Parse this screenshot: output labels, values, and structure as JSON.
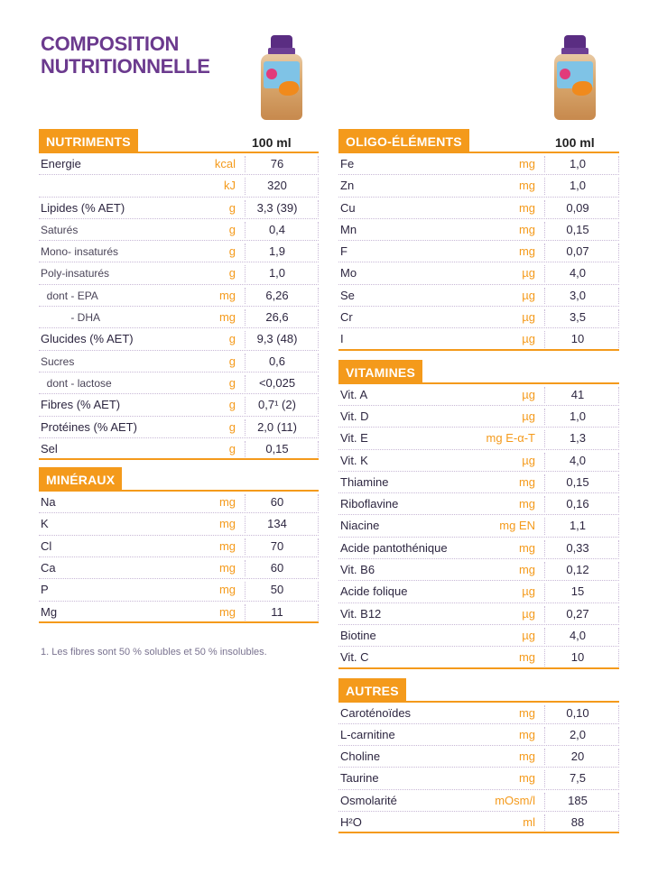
{
  "title_line1": "COMPOSITION",
  "title_line2": "NUTRITIONNELLE",
  "col_head": "100 ml",
  "left": {
    "nutriments": {
      "label": "NUTRIMENTS",
      "rows": [
        {
          "name": "Energie",
          "unit": "kcal",
          "val": "76",
          "style": "bold"
        },
        {
          "name": "",
          "unit": "kJ",
          "val": "320",
          "style": "bold"
        },
        {
          "name": "Lipides (% AET)",
          "unit": "g",
          "val": "3,3 (39)",
          "style": "bold"
        },
        {
          "name": "Saturés",
          "unit": "g",
          "val": "0,4",
          "style": "light"
        },
        {
          "name": "Mono- insaturés",
          "unit": "g",
          "val": "1,9",
          "style": "light"
        },
        {
          "name": "Poly-insaturés",
          "unit": "g",
          "val": "1,0",
          "style": "light"
        },
        {
          "name": "  dont - EPA",
          "unit": "mg",
          "val": "6,26",
          "style": "light"
        },
        {
          "name": "          - DHA",
          "unit": "mg",
          "val": "26,6",
          "style": "light"
        },
        {
          "name": "Glucides (% AET)",
          "unit": "g",
          "val": "9,3 (48)",
          "style": "bold"
        },
        {
          "name": "Sucres",
          "unit": "g",
          "val": "0,6",
          "style": "light"
        },
        {
          "name": "  dont - lactose",
          "unit": "g",
          "val": "<0,025",
          "style": "light"
        },
        {
          "name": "Fibres (% AET)",
          "unit": "g",
          "val": "0,7¹ (2)",
          "style": "bold"
        },
        {
          "name": "Protéines (% AET)",
          "unit": "g",
          "val": "2,0 (11)",
          "style": "bold"
        },
        {
          "name": "Sel",
          "unit": "g",
          "val": "0,15",
          "style": "bold"
        }
      ]
    },
    "mineraux": {
      "label": "MINÉRAUX",
      "rows": [
        {
          "name": "Na",
          "unit": "mg",
          "val": "60",
          "style": "bold"
        },
        {
          "name": "K",
          "unit": "mg",
          "val": "134",
          "style": "bold"
        },
        {
          "name": "Cl",
          "unit": "mg",
          "val": "70",
          "style": "bold"
        },
        {
          "name": "Ca",
          "unit": "mg",
          "val": "60",
          "style": "bold"
        },
        {
          "name": "P",
          "unit": "mg",
          "val": "50",
          "style": "bold"
        },
        {
          "name": "Mg",
          "unit": "mg",
          "val": "11",
          "style": "bold"
        }
      ]
    },
    "footnote": "1.   Les fibres sont 50 % solubles et 50 % insolubles."
  },
  "right": {
    "oligo": {
      "label": "OLIGO-ÉLÉMENTS",
      "rows": [
        {
          "name": "Fe",
          "unit": "mg",
          "val": "1,0"
        },
        {
          "name": "Zn",
          "unit": "mg",
          "val": "1,0"
        },
        {
          "name": "Cu",
          "unit": "mg",
          "val": "0,09"
        },
        {
          "name": "Mn",
          "unit": "mg",
          "val": "0,15"
        },
        {
          "name": "F",
          "unit": "mg",
          "val": "0,07"
        },
        {
          "name": "Mo",
          "unit": "µg",
          "val": "4,0"
        },
        {
          "name": "Se",
          "unit": "µg",
          "val": "3,0"
        },
        {
          "name": "Cr",
          "unit": "µg",
          "val": "3,5"
        },
        {
          "name": "I",
          "unit": "µg",
          "val": "10"
        }
      ]
    },
    "vitamines": {
      "label": "VITAMINES",
      "rows": [
        {
          "name": "Vit. A",
          "unit": "µg",
          "val": "41"
        },
        {
          "name": "Vit. D",
          "unit": "µg",
          "val": "1,0"
        },
        {
          "name": "Vit. E",
          "unit": "mg E-α-T",
          "val": "1,3"
        },
        {
          "name": "Vit. K",
          "unit": "µg",
          "val": "4,0"
        },
        {
          "name": "Thiamine",
          "unit": "mg",
          "val": "0,15"
        },
        {
          "name": "Riboflavine",
          "unit": "mg",
          "val": "0,16"
        },
        {
          "name": "Niacine",
          "unit": "mg EN",
          "val": "1,1"
        },
        {
          "name": "Acide pantothénique",
          "unit": "mg",
          "val": "0,33"
        },
        {
          "name": "Vit. B6",
          "unit": "mg",
          "val": "0,12"
        },
        {
          "name": "Acide folique",
          "unit": "µg",
          "val": "15"
        },
        {
          "name": "Vit. B12",
          "unit": "µg",
          "val": "0,27"
        },
        {
          "name": "Biotine",
          "unit": "µg",
          "val": "4,0"
        },
        {
          "name": "Vit. C",
          "unit": "mg",
          "val": "10"
        }
      ]
    },
    "autres": {
      "label": "AUTRES",
      "rows": [
        {
          "name": "Caroténoïdes",
          "unit": "mg",
          "val": "0,10"
        },
        {
          "name": "L-carnitine",
          "unit": "mg",
          "val": "2,0"
        },
        {
          "name": "Choline",
          "unit": "mg",
          "val": "20"
        },
        {
          "name": "Taurine",
          "unit": "mg",
          "val": "7,5"
        },
        {
          "name": "Osmolarité",
          "unit": "mOsm/l",
          "val": "185"
        },
        {
          "name": "H²O",
          "unit": "ml",
          "val": "88"
        }
      ]
    }
  }
}
